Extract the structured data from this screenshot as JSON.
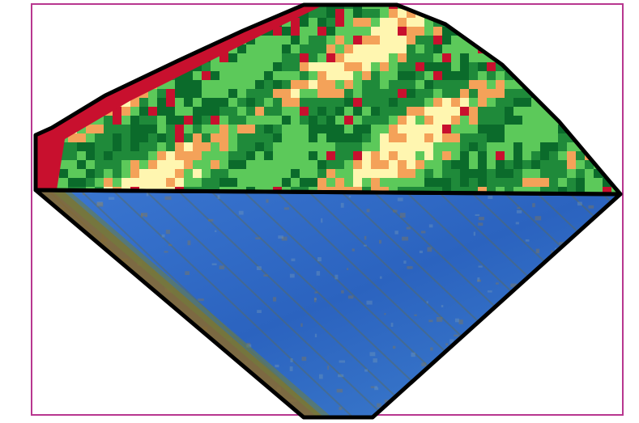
{
  "figure": {
    "frame_color": "#b8378f",
    "outline_color": "#000000",
    "top_panel": {
      "kind": "classified grid map",
      "palette": [
        "#c8102e",
        "#f4a259",
        "#fff6b0",
        "#5cc95a",
        "#1f8a3a",
        "#0b6b2b"
      ]
    },
    "bottom_panel": {
      "kind": "aerial image of field",
      "base_color": "#2f6fc7",
      "edge_color": "#8a6a2c"
    }
  }
}
